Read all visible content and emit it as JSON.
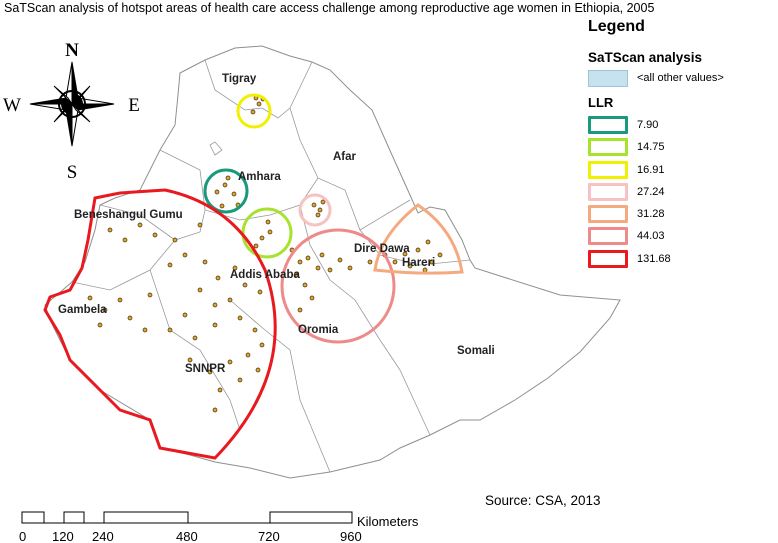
{
  "title": "SaTScan analysis of hotspot areas of health care access challenge  among reproductive age women in Ethiopia, 2005",
  "legend": {
    "title": "Legend",
    "subtitle": "SaTScan analysis",
    "fill_label": "<all other values>",
    "fill_color": "#c6e2ee",
    "llr_heading": "LLR",
    "items": [
      {
        "value": "7.90",
        "color": "#1a9a7a"
      },
      {
        "value": "14.75",
        "color": "#a6e22e"
      },
      {
        "value": "16.91",
        "color": "#f0f000"
      },
      {
        "value": "27.24",
        "color": "#f6c2c2"
      },
      {
        "value": "31.28",
        "color": "#f4a97f"
      },
      {
        "value": "44.03",
        "color": "#ee8a8a"
      },
      {
        "value": "131.68",
        "color": "#e8191f"
      }
    ]
  },
  "compass": {
    "n": "N",
    "s": "S",
    "e": "E",
    "w": "W"
  },
  "regions": {
    "tigray": "Tigray",
    "afar": "Afar",
    "amhara": "Amhara",
    "beneshangul": "Beneshangul Gumu",
    "gambela": "Gambela",
    "addis": "Addis Ababa",
    "dire": "Dire Dawa",
    "hareri": "Hareri",
    "oromia": "Oromia",
    "snnpr": "SNNPR",
    "somali": "Somali"
  },
  "source": "Source: CSA, 2013",
  "scale": {
    "unit": "Kilometers",
    "ticks": [
      "0",
      "120",
      "240",
      "480",
      "720",
      "960"
    ]
  }
}
